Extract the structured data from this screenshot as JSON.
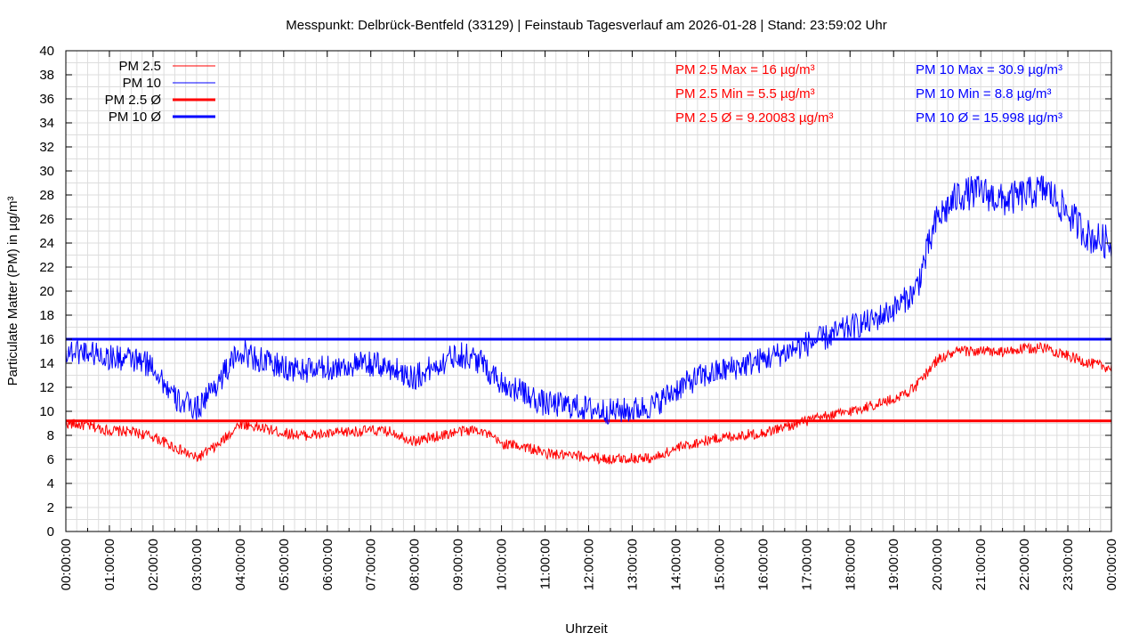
{
  "chart_data": {
    "type": "line",
    "title": "Messpunkt: Delbrück-Bentfeld (33129) | Feinstaub Tagesverlauf am 2026-01-28 | Stand: 23:59:02 Uhr",
    "xlabel": "Uhrzeit",
    "ylabel": "Particulate Matter (PM) in µg/m³",
    "xlim_hours": [
      0,
      24
    ],
    "ylim": [
      0,
      40
    ],
    "y_ticks": [
      "0",
      "2",
      "4",
      "6",
      "8",
      "10",
      "12",
      "14",
      "16",
      "18",
      "20",
      "22",
      "24",
      "26",
      "28",
      "30",
      "32",
      "34",
      "36",
      "38",
      "40"
    ],
    "x_ticks": [
      "00:00:00",
      "01:00:00",
      "02:00:00",
      "03:00:00",
      "04:00:00",
      "05:00:00",
      "06:00:00",
      "07:00:00",
      "08:00:00",
      "09:00:00",
      "10:00:00",
      "11:00:00",
      "12:00:00",
      "13:00:00",
      "14:00:00",
      "15:00:00",
      "16:00:00",
      "17:00:00",
      "18:00:00",
      "19:00:00",
      "20:00:00",
      "21:00:00",
      "22:00:00",
      "23:00:00",
      "00:00:00"
    ],
    "grid": true,
    "legend_position": "top-left",
    "legend": [
      {
        "label": "PM 2.5",
        "color": "#ff0000",
        "style": "thin"
      },
      {
        "label": "PM 10",
        "color": "#0000ff",
        "style": "thin"
      },
      {
        "label": "PM 2.5 Ø",
        "color": "#ff0000",
        "style": "thick"
      },
      {
        "label": "PM 10 Ø",
        "color": "#0000ff",
        "style": "thick"
      }
    ],
    "stats_pm25": [
      "PM 2.5 Max = 16 µg/m³",
      "PM 2.5 Min = 5.5 µg/m³",
      "PM 2.5 Ø = 9.20083 µg/m³"
    ],
    "stats_pm10": [
      "PM 10 Max = 30.9 µg/m³",
      "PM 10 Min = 8.8 µg/m³",
      "PM 10 Ø = 15.998 µg/m³"
    ],
    "colors": {
      "pm25": "#ff0000",
      "pm10": "#0000ff",
      "grid": "#dddddd"
    },
    "averages": {
      "pm25": 9.20083,
      "pm10": 15.998
    },
    "series": [
      {
        "name": "PM 2.5",
        "color": "#ff0000",
        "x": [
          0,
          0.5,
          1,
          1.5,
          2,
          2.5,
          3,
          3.5,
          4,
          4.5,
          5,
          5.5,
          6,
          6.5,
          7,
          7.5,
          8,
          8.5,
          9,
          9.5,
          10,
          10.5,
          11,
          11.5,
          12,
          12.5,
          13,
          13.5,
          14,
          14.5,
          15,
          15.5,
          16,
          16.5,
          17,
          17.5,
          18,
          18.5,
          19,
          19.5,
          20,
          20.5,
          21,
          21.5,
          22,
          22.5,
          23,
          23.5,
          24
        ],
        "values": [
          9.0,
          8.8,
          8.4,
          8.3,
          7.9,
          7.0,
          6.1,
          7.2,
          9.0,
          8.6,
          8.2,
          8.0,
          8.1,
          8.3,
          8.4,
          8.3,
          7.5,
          7.9,
          8.3,
          8.5,
          7.3,
          7.1,
          6.5,
          6.3,
          6.2,
          6.0,
          6.1,
          6.1,
          6.9,
          7.4,
          7.8,
          8.0,
          8.2,
          8.7,
          9.2,
          9.6,
          10.0,
          10.5,
          11.0,
          12.0,
          14.3,
          15.0,
          15.0,
          14.9,
          15.2,
          15.3,
          14.6,
          14.0,
          13.6
        ]
      },
      {
        "name": "PM 10",
        "color": "#0000ff",
        "x": [
          0,
          0.5,
          1,
          1.5,
          2,
          2.5,
          3,
          3.5,
          4,
          4.5,
          5,
          5.5,
          6,
          6.5,
          7,
          7.5,
          8,
          8.5,
          9,
          9.5,
          10,
          10.5,
          11,
          11.5,
          12,
          12.5,
          13,
          13.5,
          14,
          14.5,
          15,
          15.5,
          16,
          16.5,
          17,
          17.5,
          18,
          18.5,
          19,
          19.5,
          20,
          20.5,
          21,
          21.5,
          22,
          22.5,
          23,
          23.5,
          24
        ],
        "values": [
          15.0,
          15.0,
          14.5,
          14.3,
          13.8,
          11.0,
          10.2,
          12.5,
          15.0,
          14.2,
          13.6,
          13.4,
          13.6,
          13.8,
          13.9,
          13.6,
          12.8,
          13.8,
          14.8,
          14.2,
          12.4,
          11.5,
          10.6,
          10.5,
          10.2,
          10.0,
          10.1,
          10.5,
          11.8,
          12.8,
          13.3,
          13.8,
          14.3,
          14.9,
          15.6,
          16.2,
          17.0,
          17.5,
          18.5,
          20.0,
          26.0,
          28.0,
          28.3,
          27.5,
          28.0,
          28.5,
          26.5,
          24.5,
          24.0
        ]
      }
    ]
  }
}
